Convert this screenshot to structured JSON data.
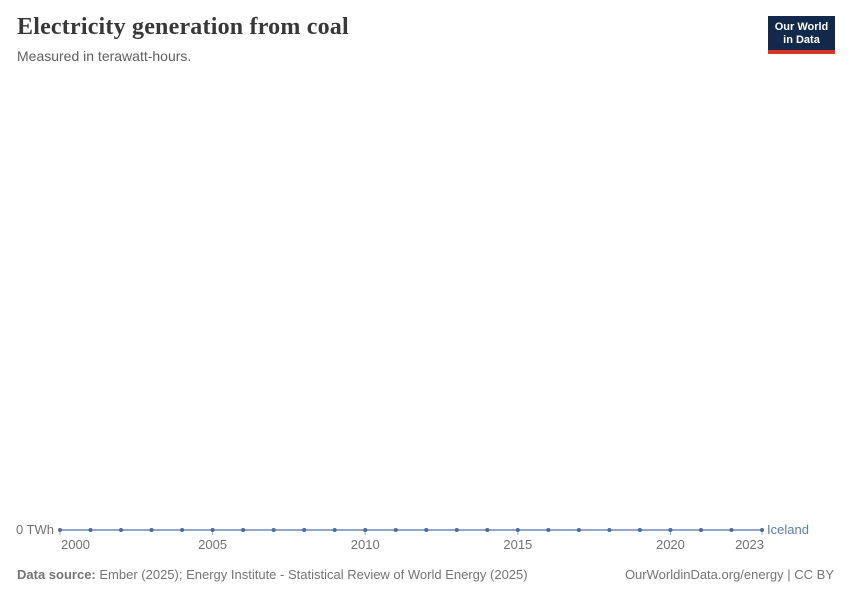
{
  "header": {
    "title": "Electricity generation from coal",
    "subtitle": "Measured in terawatt-hours.",
    "logo": {
      "line1": "Our World",
      "line2": "in Data",
      "bg": "#12294d",
      "accent": "#d7352a"
    }
  },
  "chart_data": {
    "type": "line",
    "title": "Electricity generation from coal",
    "subtitle": "Measured in terawatt-hours.",
    "unit": "TWh",
    "x": [
      2000,
      2001,
      2002,
      2003,
      2004,
      2005,
      2006,
      2007,
      2008,
      2009,
      2010,
      2011,
      2012,
      2013,
      2014,
      2015,
      2016,
      2017,
      2018,
      2019,
      2020,
      2021,
      2022,
      2023
    ],
    "series": [
      {
        "name": "Iceland",
        "color": "#4c6a9c",
        "values": [
          0,
          0,
          0,
          0,
          0,
          0,
          0,
          0,
          0,
          0,
          0,
          0,
          0,
          0,
          0,
          0,
          0,
          0,
          0,
          0,
          0,
          0,
          0,
          0
        ]
      }
    ],
    "xlim": [
      2000,
      2023
    ],
    "ylim": [
      0,
      0
    ],
    "x_ticks": [
      2000,
      2005,
      2010,
      2015,
      2020,
      2023
    ],
    "y_axis_label": "0 TWh",
    "entity_label": "Iceland",
    "grid": false,
    "legend_position": "end-of-line"
  },
  "footer": {
    "source_label": "Data source:",
    "source_text": "Ember (2025); Energy Institute - Statistical Review of World Energy (2025)",
    "rights": "OurWorldinData.org/energy | CC BY"
  },
  "colors": {
    "title": "#383838",
    "subtitle": "#5f5f5f",
    "line": "#6b88bb",
    "dot": "#4c6a9c",
    "entity_label": "#5b7db8",
    "axis_text": "#737373",
    "tick": "#a8adb3",
    "footer_text": "#757575",
    "logo_bg": "#12294d",
    "logo_accent": "#d7352a"
  }
}
